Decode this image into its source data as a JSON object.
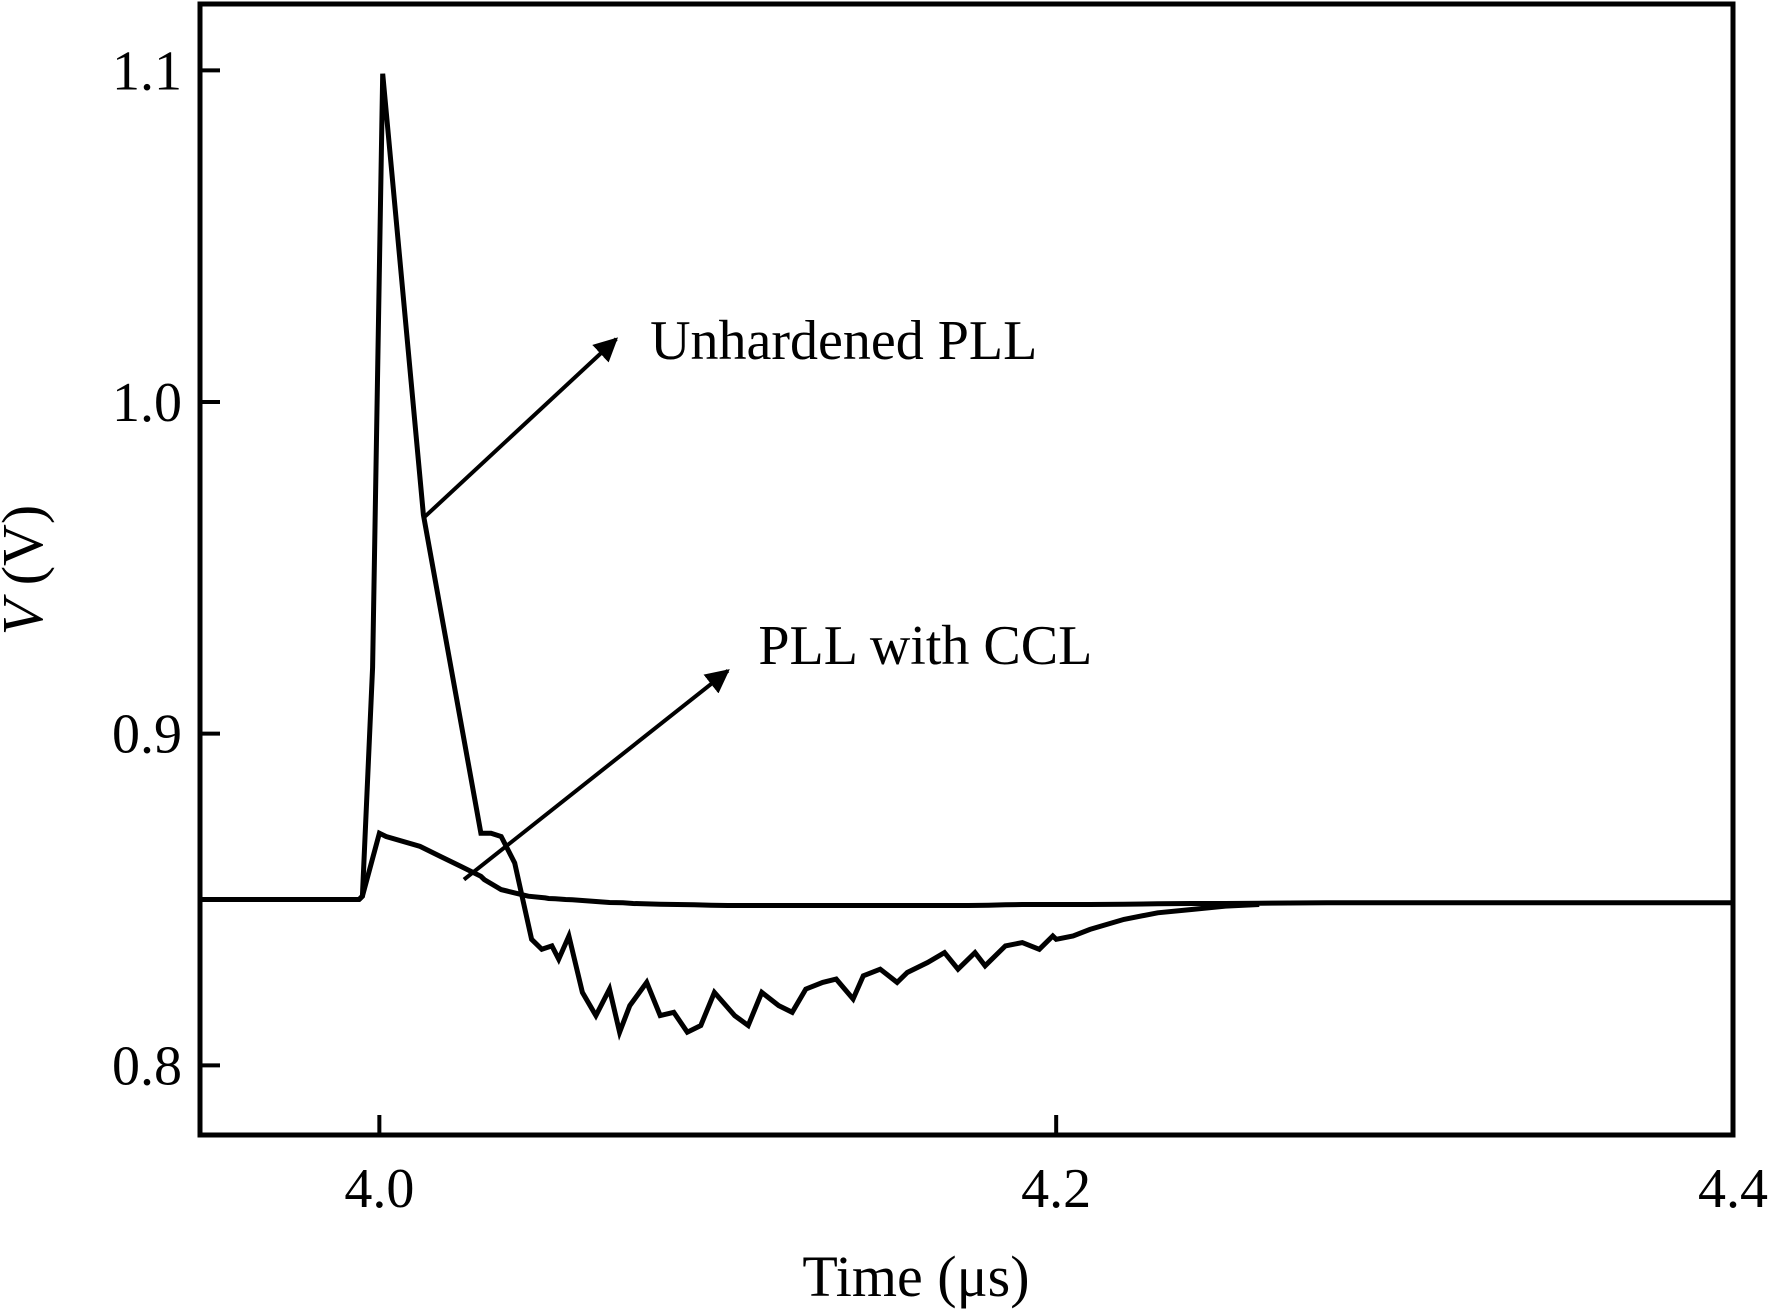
{
  "chart_data": {
    "type": "line",
    "xlabel": "Time (μs)",
    "ylabel_var": "V",
    "ylabel_unit": " (V)",
    "xlim": [
      3.947,
      4.4
    ],
    "ylim": [
      0.779,
      1.12
    ],
    "x_ticks": [
      {
        "value": 4.0,
        "label": "4.0"
      },
      {
        "value": 4.2,
        "label": "4.2"
      },
      {
        "value": 4.4,
        "label": "4.4"
      }
    ],
    "y_ticks": [
      {
        "value": 0.8,
        "label": "0.8"
      },
      {
        "value": 0.9,
        "label": "0.9"
      },
      {
        "value": 1.0,
        "label": "1.0"
      },
      {
        "value": 1.1,
        "label": "1.1"
      }
    ],
    "grid": false,
    "line_color": "#000000",
    "series": [
      {
        "id": "unhardened",
        "x": [
          3.947,
          3.994,
          3.995,
          4.0,
          4.002,
          4.012,
          4.018,
          4.024,
          4.03,
          4.031,
          4.036,
          4.04,
          4.044,
          4.049,
          4.05,
          4.052,
          4.054,
          4.055,
          4.057,
          4.06,
          4.063,
          4.065,
          4.068,
          4.072,
          4.075,
          4.078,
          4.083,
          4.088,
          4.093,
          4.098,
          4.103,
          4.108,
          4.113,
          4.118,
          4.122,
          4.127,
          4.132,
          4.136,
          4.14,
          4.145,
          4.15,
          4.154,
          4.157,
          4.162,
          4.167,
          4.171,
          4.174,
          4.18,
          4.185,
          4.19,
          4.196,
          4.2,
          4.201,
          4.21,
          4.22,
          4.23,
          4.24,
          4.25,
          4.26,
          4.28,
          4.32,
          4.36,
          4.4
        ],
        "y": [
          0.85,
          0.85,
          0.851,
          0.87,
          0.869,
          0.866,
          0.863,
          0.86,
          0.857,
          0.856,
          0.853,
          0.852,
          0.851,
          0.8505,
          0.8503,
          0.8502,
          0.8501,
          0.85,
          0.8499,
          0.8497,
          0.8495,
          0.8493,
          0.8491,
          0.849,
          0.8488,
          0.8487,
          0.8486,
          0.8485,
          0.8484,
          0.8483,
          0.8482,
          0.8482,
          0.8482,
          0.8482,
          0.8482,
          0.8482,
          0.8482,
          0.8482,
          0.8482,
          0.8482,
          0.8482,
          0.8482,
          0.8482,
          0.8482,
          0.8482,
          0.8482,
          0.8482,
          0.8483,
          0.8484,
          0.8485,
          0.8485,
          0.8485,
          0.8485,
          0.8485,
          0.8486,
          0.8487,
          0.8488,
          0.8488,
          0.8489,
          0.849,
          0.849,
          0.849,
          0.849
        ]
      },
      {
        "id": "ccl",
        "x": [
          3.994,
          3.995,
          3.998,
          4.001,
          4.013,
          4.03,
          4.033,
          4.036,
          4.04,
          4.045,
          4.048,
          4.051,
          4.053,
          4.056,
          4.06,
          4.064,
          4.068,
          4.071,
          4.074,
          4.079,
          4.083,
          4.087,
          4.091,
          4.095,
          4.099,
          4.105,
          4.109,
          4.113,
          4.118,
          4.122,
          4.126,
          4.131,
          4.135,
          4.14,
          4.143,
          4.148,
          4.153,
          4.156,
          4.162,
          4.167,
          4.171,
          4.176,
          4.179,
          4.185,
          4.19,
          4.195,
          4.199,
          4.2,
          4.205,
          4.21,
          4.22,
          4.23,
          4.24,
          4.25,
          4.26
        ],
        "y": [
          0.85,
          0.851,
          0.92,
          1.099,
          0.966,
          0.87,
          0.87,
          0.869,
          0.861,
          0.838,
          0.835,
          0.836,
          0.832,
          0.839,
          0.822,
          0.815,
          0.823,
          0.81,
          0.818,
          0.825,
          0.815,
          0.816,
          0.81,
          0.812,
          0.822,
          0.815,
          0.812,
          0.822,
          0.818,
          0.816,
          0.823,
          0.825,
          0.826,
          0.82,
          0.827,
          0.829,
          0.825,
          0.828,
          0.831,
          0.834,
          0.829,
          0.834,
          0.83,
          0.836,
          0.837,
          0.835,
          0.839,
          0.838,
          0.839,
          0.841,
          0.844,
          0.846,
          0.847,
          0.848,
          0.8485
        ]
      }
    ],
    "annotations": [
      {
        "text": "Unhardened PLL",
        "from": [
          4.013,
          0.965
        ],
        "to": [
          4.07,
          1.019
        ],
        "text_at": [
          4.08,
          1.019
        ]
      },
      {
        "text": "PLL with CCL",
        "from": [
          4.025,
          0.856
        ],
        "to": [
          4.103,
          0.919
        ],
        "text_at": [
          4.112,
          0.927
        ]
      }
    ]
  }
}
